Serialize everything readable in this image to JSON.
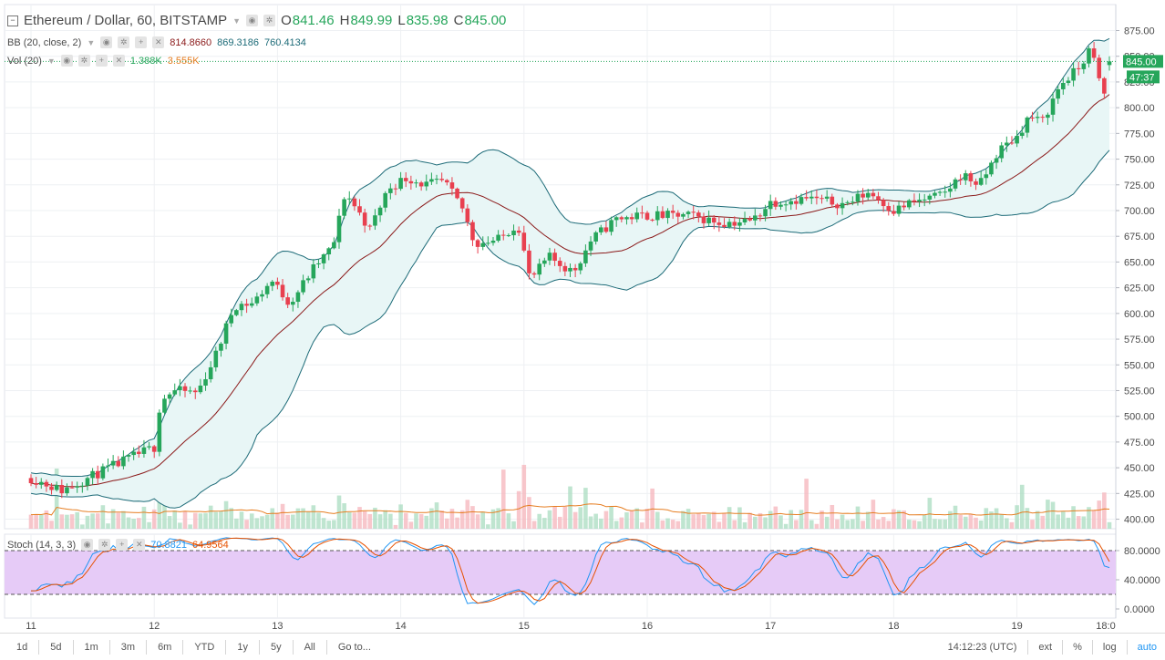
{
  "header": {
    "symbol_title": "Ethereum / Dollar, 60, BITSTAMP",
    "open_label": "O",
    "open_value": "841.46",
    "high_label": "H",
    "high_value": "849.99",
    "low_label": "L",
    "low_value": "835.98",
    "close_label": "C",
    "close_value": "845.00"
  },
  "bb_legend": {
    "label": "BB (20, close, 2)",
    "basis": "814.8660",
    "upper": "869.3186",
    "lower": "760.4134"
  },
  "vol_legend": {
    "label": "Vol (20)",
    "volume": "1.388K",
    "ma": "3.555K"
  },
  "stoch_legend": {
    "label": "Stoch (14, 3, 3)",
    "k": "70.8821",
    "d": "64.9564"
  },
  "price_tags": {
    "last": "845.00",
    "countdown": "47:37"
  },
  "price_axis_labels": [
    "875.00",
    "850.00",
    "825.00",
    "800.00",
    "775.00",
    "750.00",
    "725.00",
    "700.00",
    "675.00",
    "650.00",
    "625.00",
    "600.00",
    "575.00",
    "550.00",
    "525.00",
    "500.00",
    "475.00",
    "450.00",
    "425.00",
    "400.00"
  ],
  "stoch_axis_labels": [
    "80.0000",
    "40.0000",
    "0.0000"
  ],
  "time_axis_labels": [
    "11",
    "12",
    "13",
    "14",
    "15",
    "16",
    "17",
    "18",
    "19",
    "18:0"
  ],
  "bottom_bar": {
    "timeframes": [
      "1d",
      "5d",
      "1m",
      "3m",
      "6m",
      "YTD",
      "1y",
      "5y",
      "All"
    ],
    "goto": "Go to...",
    "clock": "14:12:23 (UTC)",
    "ext": "ext",
    "percent": "%",
    "log": "log",
    "auto": "auto"
  },
  "colors": {
    "up": "#26a65b",
    "down": "#e8404f",
    "bb_line": "#1d6b78",
    "bb_fill": "#e8f6f6",
    "basis": "#8b1a1a",
    "vol_ma": "#e67e22",
    "stoch_k": "#2196f3",
    "stoch_d": "#e65100",
    "stoch_band": "#e6cbf7"
  },
  "chart_data": {
    "type": "candlestick",
    "symbol": "Ethereum / Dollar",
    "interval": "60",
    "exchange": "BITSTAMP",
    "price_range": [
      390,
      885
    ],
    "keypoints": [
      {
        "x": 0.0,
        "p": 440
      },
      {
        "x": 0.25,
        "p": 428
      },
      {
        "x": 0.55,
        "p": 445
      },
      {
        "x": 0.85,
        "p": 462
      },
      {
        "x": 1.0,
        "p": 470
      },
      {
        "x": 1.05,
        "p": 515
      },
      {
        "x": 1.15,
        "p": 525
      },
      {
        "x": 1.35,
        "p": 523
      },
      {
        "x": 1.5,
        "p": 560
      },
      {
        "x": 1.65,
        "p": 608
      },
      {
        "x": 1.8,
        "p": 610
      },
      {
        "x": 1.95,
        "p": 632
      },
      {
        "x": 2.1,
        "p": 610
      },
      {
        "x": 2.3,
        "p": 645
      },
      {
        "x": 2.45,
        "p": 665
      },
      {
        "x": 2.55,
        "p": 718
      },
      {
        "x": 2.75,
        "p": 682
      },
      {
        "x": 2.9,
        "p": 722
      },
      {
        "x": 3.05,
        "p": 732
      },
      {
        "x": 3.2,
        "p": 725
      },
      {
        "x": 3.35,
        "p": 728
      },
      {
        "x": 3.5,
        "p": 702
      },
      {
        "x": 3.6,
        "p": 668
      },
      {
        "x": 3.8,
        "p": 672
      },
      {
        "x": 3.95,
        "p": 688
      },
      {
        "x": 4.05,
        "p": 632
      },
      {
        "x": 4.2,
        "p": 655
      },
      {
        "x": 4.4,
        "p": 640
      },
      {
        "x": 4.55,
        "p": 672
      },
      {
        "x": 4.75,
        "p": 692
      },
      {
        "x": 4.95,
        "p": 695
      },
      {
        "x": 5.15,
        "p": 695
      },
      {
        "x": 5.35,
        "p": 695
      },
      {
        "x": 5.6,
        "p": 688
      },
      {
        "x": 5.85,
        "p": 690
      },
      {
        "x": 6.0,
        "p": 708
      },
      {
        "x": 6.3,
        "p": 712
      },
      {
        "x": 6.6,
        "p": 706
      },
      {
        "x": 6.8,
        "p": 718
      },
      {
        "x": 7.0,
        "p": 700
      },
      {
        "x": 7.15,
        "p": 708
      },
      {
        "x": 7.4,
        "p": 715
      },
      {
        "x": 7.55,
        "p": 735
      },
      {
        "x": 7.7,
        "p": 725
      },
      {
        "x": 7.85,
        "p": 758
      },
      {
        "x": 8.0,
        "p": 772
      },
      {
        "x": 8.1,
        "p": 792
      },
      {
        "x": 8.2,
        "p": 785
      },
      {
        "x": 8.35,
        "p": 822
      },
      {
        "x": 8.5,
        "p": 838
      },
      {
        "x": 8.6,
        "p": 858
      },
      {
        "x": 8.7,
        "p": 810
      },
      {
        "x": 8.78,
        "p": 845
      }
    ],
    "stoch_k_range": [
      0,
      100
    ],
    "stoch_levels": [
      80,
      20
    ]
  }
}
